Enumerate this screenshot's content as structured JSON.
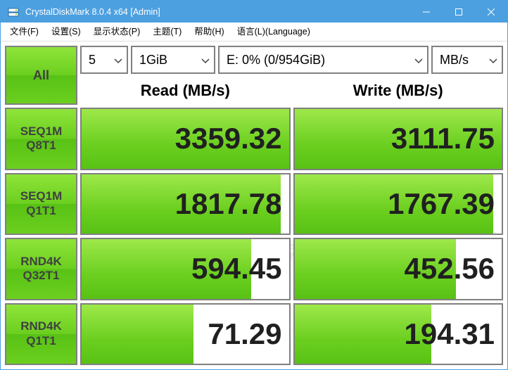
{
  "window": {
    "title": "CrystalDiskMark 8.0.4 x64 [Admin]",
    "titlebar_color": "#4ca0e0"
  },
  "menu": {
    "file": "文件(F)",
    "settings": "设置(S)",
    "display": "显示状态(P)",
    "theme": "主题(T)",
    "help": "帮助(H)",
    "language": "语言(L)(Language)"
  },
  "controls": {
    "all_label": "All",
    "count": "5",
    "size": "1GiB",
    "drive": "E: 0% (0/954GiB)",
    "unit": "MB/s"
  },
  "headers": {
    "read": "Read (MB/s)",
    "write": "Write (MB/s)"
  },
  "tests": [
    {
      "line1": "SEQ1M",
      "line2": "Q8T1",
      "read": "3359.32",
      "read_bar_pct": 100,
      "write": "3111.75",
      "write_bar_pct": 100
    },
    {
      "line1": "SEQ1M",
      "line2": "Q1T1",
      "read": "1817.78",
      "read_bar_pct": 96,
      "write": "1767.39",
      "write_bar_pct": 96
    },
    {
      "line1": "RND4K",
      "line2": "Q32T1",
      "read": "594.45",
      "read_bar_pct": 82,
      "write": "452.56",
      "write_bar_pct": 78
    },
    {
      "line1": "RND4K",
      "line2": "Q1T1",
      "read": "71.29",
      "read_bar_pct": 54,
      "write": "194.31",
      "write_bar_pct": 66
    }
  ],
  "watermark": "数码之家",
  "watermark_sub": "MYDIG.NET",
  "colors": {
    "green_light": "#8fe43a",
    "green_dark": "#58c215",
    "border_gray": "#808080"
  }
}
